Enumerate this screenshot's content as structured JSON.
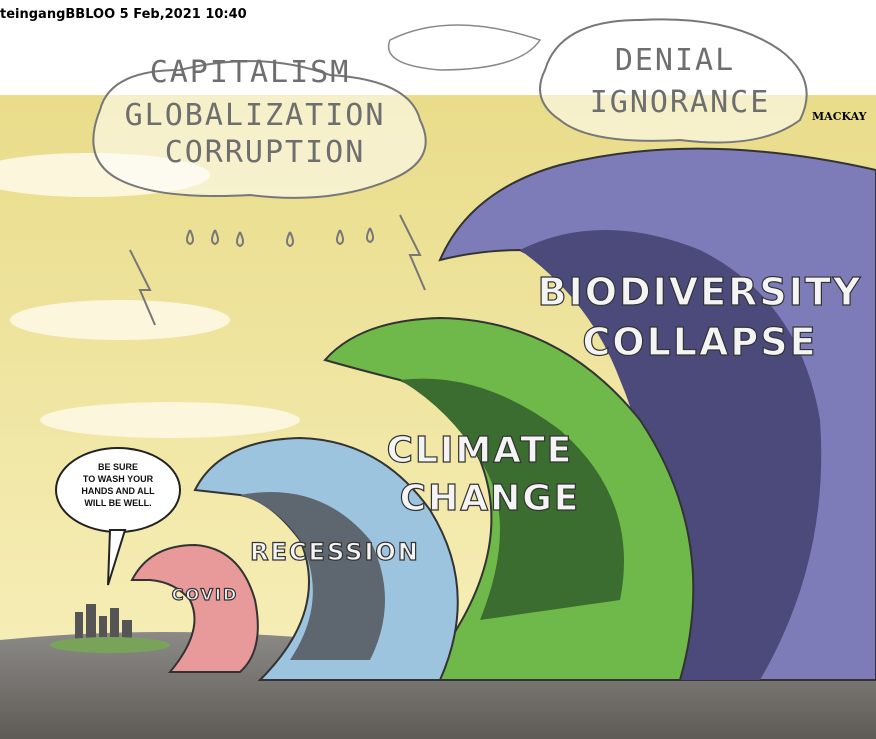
{
  "header": {
    "timestamp": "teingangBBLOO 5 Feb,2021 10:40"
  },
  "clouds": [
    {
      "lines": [
        "CAPITALISM",
        "GLOBALIZATION",
        "CORRUPTION"
      ]
    },
    {
      "lines": [
        "DENIAL",
        "IGNORANCE"
      ]
    }
  ],
  "signature": "MACKAY",
  "waves": [
    {
      "lines": [
        "BIODIVERSITY",
        "COLLAPSE"
      ]
    },
    {
      "lines": [
        "CLIMATE",
        "CHANGE"
      ]
    },
    {
      "lines": [
        "RECESSION"
      ]
    },
    {
      "lines": [
        "COVID"
      ]
    }
  ],
  "speech_bubble": {
    "lines": [
      "BE SURE",
      "TO WASH YOUR",
      "HANDS AND ALL",
      "WILL BE WELL."
    ]
  }
}
